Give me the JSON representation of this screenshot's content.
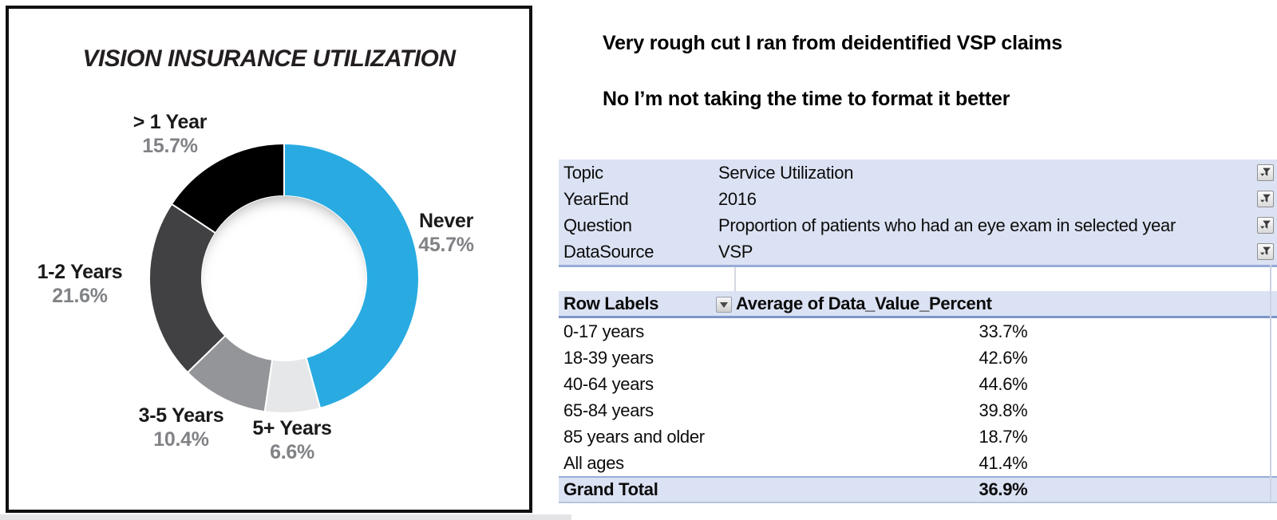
{
  "annotations": {
    "line1": "Very rough cut I ran from deidentified VSP claims",
    "line2": "No I’m not taking the time to format it better"
  },
  "chart_data": [
    {
      "type": "pie",
      "subtype": "donut",
      "title": "VISION INSURANCE UTILIZATION",
      "direction": "clockwise",
      "start_angle_deg": 0,
      "inner_radius_ratio": 0.6,
      "segments": [
        {
          "label": "Never",
          "value": 45.7,
          "display_pct": "45.7%",
          "color": "#29ABE2"
        },
        {
          "label": "5+ Years",
          "value": 6.6,
          "display_pct": "6.6%",
          "color": "#E6E7E8"
        },
        {
          "label": "3-5 Years",
          "value": 10.4,
          "display_pct": "10.4%",
          "color": "#939598"
        },
        {
          "label": "1-2 Years",
          "value": 21.6,
          "display_pct": "21.6%",
          "color": "#414042"
        },
        {
          "label": "> 1 Year",
          "value": 15.7,
          "display_pct": "15.7%",
          "color": "#000000"
        }
      ]
    },
    {
      "type": "table",
      "filters": [
        {
          "label": "Topic",
          "value": "Service Utilization"
        },
        {
          "label": "YearEnd",
          "value": "2016"
        },
        {
          "label": "Question",
          "value": "Proportion of patients who had an eye exam in selected year"
        },
        {
          "label": "DataSource",
          "value": "VSP"
        }
      ],
      "columns": [
        "Row Labels",
        "Average of Data_Value_Percent"
      ],
      "rows": [
        [
          "0-17 years",
          "33.7%"
        ],
        [
          "18-39 years",
          "42.6%"
        ],
        [
          "40-64 years",
          "44.6%"
        ],
        [
          "65-84 years",
          "39.8%"
        ],
        [
          "85 years and older",
          "18.7%"
        ],
        [
          "All ages",
          "41.4%"
        ]
      ],
      "grand_total": [
        "Grand Total",
        "36.9%"
      ]
    }
  ],
  "icons": {
    "filter_button": "filter-funnel-icon",
    "row_labels_dropdown": "chevron-down-icon"
  },
  "colors": {
    "accent_blue": "#29ABE2",
    "pivot_row_bg": "#DBE2F3",
    "pivot_border_blue": "#97ABD6",
    "pct_label_gray": "#808285"
  }
}
